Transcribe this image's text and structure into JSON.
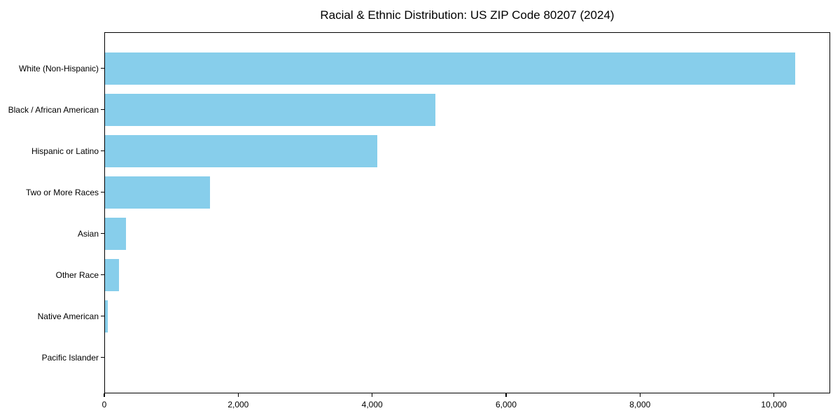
{
  "chart_data": {
    "type": "bar",
    "orientation": "horizontal",
    "title": "Racial & Ethnic Distribution: US ZIP Code 80207 (2024)",
    "categories": [
      "White (Non-Hispanic)",
      "Black / African American",
      "Hispanic or Latino",
      "Two or More Races",
      "Asian",
      "Other Race",
      "Native American",
      "Pacific Islander"
    ],
    "values": [
      10320,
      4940,
      4080,
      1580,
      320,
      220,
      50,
      10
    ],
    "xlabel": "",
    "ylabel": "",
    "xlim": [
      0,
      10840
    ],
    "x_ticks": [
      0,
      2000,
      4000,
      6000,
      8000,
      10000
    ],
    "x_tick_labels": [
      "0",
      "2,000",
      "4,000",
      "6,000",
      "8,000",
      "10,000"
    ],
    "bar_color": "#87CEEB",
    "grid": false,
    "legend": null,
    "background_color": "#ffffff",
    "frame_color": "#000000"
  }
}
